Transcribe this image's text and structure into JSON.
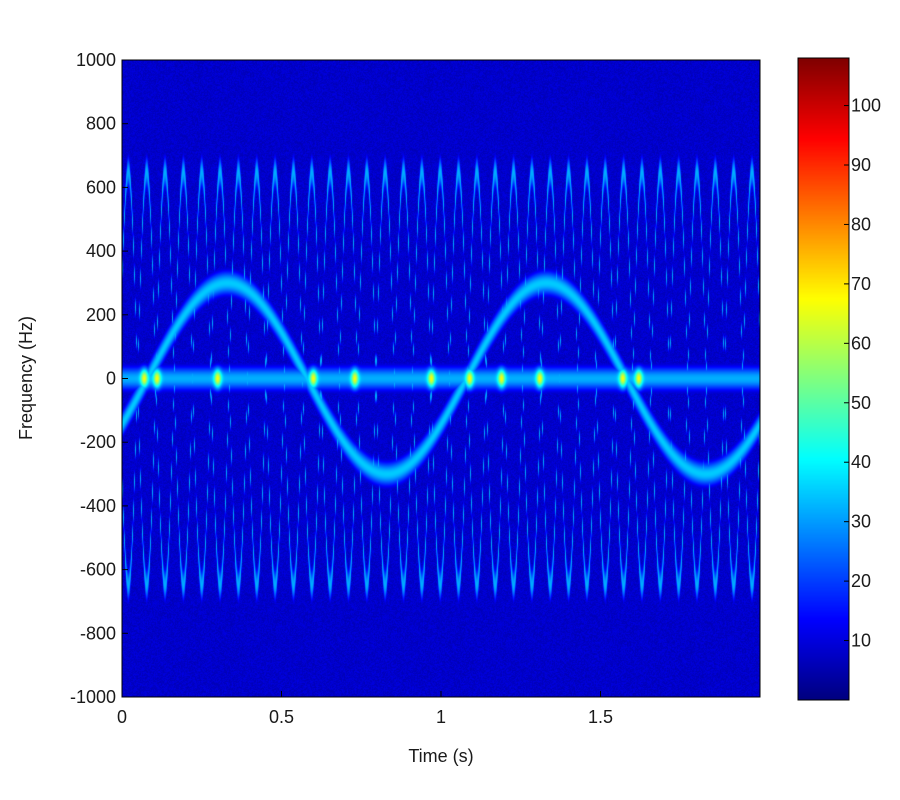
{
  "chart_data": {
    "type": "heatmap",
    "title": "",
    "xlabel": "Time (s)",
    "ylabel": "Frequency (Hz)",
    "xlim": [
      0,
      2
    ],
    "ylim": [
      -1000,
      1000
    ],
    "x_ticks": [
      0,
      0.5,
      1,
      1.5
    ],
    "x_tick_labels": [
      "0",
      "0.5",
      "1",
      "1.5"
    ],
    "y_ticks": [
      1000,
      800,
      600,
      400,
      200,
      0,
      -200,
      -400,
      -600,
      -800,
      -1000
    ],
    "y_tick_labels": [
      "1000",
      "800",
      "600",
      "400",
      "200",
      "0",
      "-200",
      "-400",
      "-600",
      "-800",
      "-1000"
    ],
    "colorbar": {
      "range": [
        0,
        108
      ],
      "ticks": [
        10,
        20,
        30,
        40,
        50,
        60,
        70,
        80,
        90,
        100
      ],
      "tick_labels": [
        "10",
        "20",
        "30",
        "40",
        "50",
        "60",
        "70",
        "80",
        "90",
        "100"
      ],
      "colormap": "jet"
    },
    "background_level": 8,
    "components": [
      {
        "kind": "constant",
        "frequency_hz": 0,
        "level": 32,
        "hotspots_s": [
          0.07,
          0.11,
          0.3,
          0.6,
          0.73,
          0.97,
          1.09,
          1.19,
          1.31,
          1.57,
          1.62
        ]
      },
      {
        "kind": "sinusoidal_fm",
        "center_hz": 0,
        "amplitude_hz": 300,
        "period_s": 1.0,
        "peak_time_s": 0.33,
        "level": 35
      },
      {
        "kind": "sinusoidal_fm_pair",
        "center_hz": 0,
        "amplitude_hz": 650,
        "period_s": 0.115,
        "peak_time_s": 0.02,
        "mirrored": true,
        "level": 32
      }
    ],
    "colors": {
      "background": "#1f3f9f",
      "axes_frame": "#000000"
    }
  }
}
